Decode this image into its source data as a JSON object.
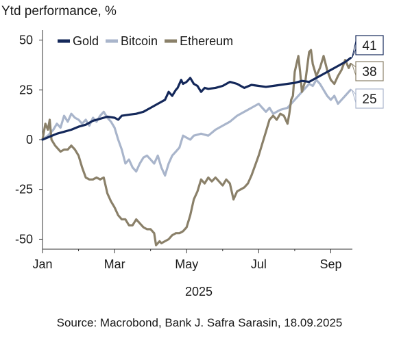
{
  "chart_data": {
    "type": "line",
    "title": "Ytd performance, %",
    "xlabel": "2025",
    "ylabel": "",
    "ylim": [
      -55,
      55
    ],
    "yticks": [
      50,
      25,
      0,
      -25,
      -50
    ],
    "xticks": [
      "Jan",
      "Mar",
      "May",
      "Jul",
      "Sep"
    ],
    "x_range": [
      0,
      8.6
    ],
    "x_unit": "months since 1 Jan 2025",
    "legend_position": "top",
    "grid": false,
    "series": [
      {
        "name": "Gold",
        "color": "#14285a",
        "end_label": "41",
        "points": [
          [
            0,
            0
          ],
          [
            0.2,
            1.5
          ],
          [
            0.4,
            3
          ],
          [
            0.6,
            4
          ],
          [
            0.8,
            5
          ],
          [
            1.0,
            6.5
          ],
          [
            1.2,
            7.5
          ],
          [
            1.4,
            9.5
          ],
          [
            1.6,
            10.5
          ],
          [
            1.8,
            11.5
          ],
          [
            2.0,
            11
          ],
          [
            2.1,
            10
          ],
          [
            2.2,
            12
          ],
          [
            2.4,
            12.5
          ],
          [
            2.6,
            13
          ],
          [
            2.8,
            14
          ],
          [
            3.0,
            16
          ],
          [
            3.2,
            18
          ],
          [
            3.4,
            20
          ],
          [
            3.5,
            24
          ],
          [
            3.6,
            22
          ],
          [
            3.7,
            25
          ],
          [
            3.75,
            26
          ],
          [
            3.85,
            30
          ],
          [
            3.9,
            28
          ],
          [
            4.0,
            29
          ],
          [
            4.1,
            31
          ],
          [
            4.2,
            28
          ],
          [
            4.3,
            27
          ],
          [
            4.4,
            24
          ],
          [
            4.5,
            26
          ],
          [
            4.6,
            25.5
          ],
          [
            4.8,
            26
          ],
          [
            5.0,
            27
          ],
          [
            5.2,
            29
          ],
          [
            5.4,
            28
          ],
          [
            5.6,
            26
          ],
          [
            5.8,
            27.5
          ],
          [
            6.0,
            27
          ],
          [
            6.2,
            26.5
          ],
          [
            6.4,
            27
          ],
          [
            6.6,
            27.5
          ],
          [
            6.8,
            28
          ],
          [
            7.0,
            28.5
          ],
          [
            7.2,
            29.5
          ],
          [
            7.4,
            29
          ],
          [
            7.6,
            31
          ],
          [
            7.8,
            33
          ],
          [
            8.0,
            35
          ],
          [
            8.2,
            37
          ],
          [
            8.4,
            39
          ],
          [
            8.55,
            41
          ]
        ]
      },
      {
        "name": "Bitcoin",
        "color": "#a9b5cb",
        "end_label": "25",
        "points": [
          [
            0,
            0
          ],
          [
            0.15,
            2
          ],
          [
            0.3,
            5
          ],
          [
            0.4,
            8
          ],
          [
            0.5,
            6
          ],
          [
            0.6,
            12
          ],
          [
            0.7,
            9
          ],
          [
            0.8,
            13
          ],
          [
            0.9,
            11
          ],
          [
            1.0,
            10
          ],
          [
            1.1,
            8
          ],
          [
            1.2,
            10
          ],
          [
            1.3,
            7
          ],
          [
            1.4,
            11
          ],
          [
            1.5,
            9
          ],
          [
            1.6,
            12
          ],
          [
            1.7,
            14
          ],
          [
            1.8,
            11
          ],
          [
            1.9,
            9
          ],
          [
            2.0,
            6
          ],
          [
            2.1,
            0
          ],
          [
            2.2,
            -5
          ],
          [
            2.3,
            -12
          ],
          [
            2.4,
            -10
          ],
          [
            2.5,
            -14
          ],
          [
            2.6,
            -16
          ],
          [
            2.7,
            -12
          ],
          [
            2.8,
            -9
          ],
          [
            2.9,
            -8
          ],
          [
            3.0,
            -10
          ],
          [
            3.1,
            -12
          ],
          [
            3.2,
            -8
          ],
          [
            3.3,
            -14
          ],
          [
            3.4,
            -18
          ],
          [
            3.5,
            -12
          ],
          [
            3.6,
            -8
          ],
          [
            3.7,
            -6
          ],
          [
            3.8,
            -4
          ],
          [
            3.9,
            2
          ],
          [
            4.0,
            1
          ],
          [
            4.1,
            0
          ],
          [
            4.2,
            2
          ],
          [
            4.4,
            3
          ],
          [
            4.6,
            2
          ],
          [
            4.8,
            5
          ],
          [
            5.0,
            7
          ],
          [
            5.2,
            9
          ],
          [
            5.4,
            12
          ],
          [
            5.6,
            14
          ],
          [
            5.8,
            16
          ],
          [
            6.0,
            18
          ],
          [
            6.1,
            16
          ],
          [
            6.2,
            14
          ],
          [
            6.3,
            16
          ],
          [
            6.4,
            13
          ],
          [
            6.5,
            14
          ],
          [
            6.6,
            15
          ],
          [
            6.8,
            16
          ],
          [
            7.0,
            20
          ],
          [
            7.2,
            24
          ],
          [
            7.3,
            26
          ],
          [
            7.4,
            28
          ],
          [
            7.5,
            27
          ],
          [
            7.6,
            30
          ],
          [
            7.7,
            28
          ],
          [
            7.8,
            25
          ],
          [
            7.9,
            22
          ],
          [
            8.0,
            20
          ],
          [
            8.1,
            22
          ],
          [
            8.2,
            18
          ],
          [
            8.3,
            20
          ],
          [
            8.4,
            22
          ],
          [
            8.5,
            24
          ],
          [
            8.55,
            25
          ]
        ]
      },
      {
        "name": "Ethereum",
        "color": "#8a8069",
        "end_label": "38",
        "points": [
          [
            0,
            0
          ],
          [
            0.08,
            8
          ],
          [
            0.15,
            5
          ],
          [
            0.2,
            10
          ],
          [
            0.25,
            0
          ],
          [
            0.35,
            -3
          ],
          [
            0.5,
            -6
          ],
          [
            0.6,
            -5
          ],
          [
            0.7,
            -5
          ],
          [
            0.8,
            -3
          ],
          [
            0.9,
            -5
          ],
          [
            1.0,
            -8
          ],
          [
            1.1,
            -14
          ],
          [
            1.2,
            -19
          ],
          [
            1.3,
            -20
          ],
          [
            1.4,
            -20
          ],
          [
            1.5,
            -19
          ],
          [
            1.6,
            -20
          ],
          [
            1.7,
            -19
          ],
          [
            1.8,
            -27
          ],
          [
            1.9,
            -31
          ],
          [
            2.0,
            -34
          ],
          [
            2.1,
            -38
          ],
          [
            2.2,
            -40
          ],
          [
            2.3,
            -40
          ],
          [
            2.4,
            -43
          ],
          [
            2.5,
            -43
          ],
          [
            2.6,
            -40
          ],
          [
            2.7,
            -42
          ],
          [
            2.8,
            -44
          ],
          [
            2.9,
            -45
          ],
          [
            3.0,
            -45
          ],
          [
            3.1,
            -47
          ],
          [
            3.15,
            -53
          ],
          [
            3.25,
            -51
          ],
          [
            3.3,
            -52
          ],
          [
            3.4,
            -51
          ],
          [
            3.5,
            -50
          ],
          [
            3.6,
            -48
          ],
          [
            3.7,
            -47
          ],
          [
            3.8,
            -47
          ],
          [
            3.9,
            -46
          ],
          [
            4.0,
            -44
          ],
          [
            4.1,
            -38
          ],
          [
            4.2,
            -30
          ],
          [
            4.3,
            -26
          ],
          [
            4.4,
            -20
          ],
          [
            4.5,
            -22
          ],
          [
            4.6,
            -19
          ],
          [
            4.7,
            -21
          ],
          [
            4.8,
            -19
          ],
          [
            4.9,
            -21
          ],
          [
            5.0,
            -23
          ],
          [
            5.1,
            -20
          ],
          [
            5.2,
            -22
          ],
          [
            5.3,
            -30
          ],
          [
            5.4,
            -26
          ],
          [
            5.5,
            -25
          ],
          [
            5.6,
            -24
          ],
          [
            5.7,
            -22
          ],
          [
            5.8,
            -18
          ],
          [
            5.9,
            -13
          ],
          [
            6.0,
            -8
          ],
          [
            6.1,
            -2
          ],
          [
            6.2,
            4
          ],
          [
            6.3,
            10
          ],
          [
            6.4,
            12
          ],
          [
            6.5,
            10
          ],
          [
            6.6,
            13
          ],
          [
            6.7,
            12
          ],
          [
            6.8,
            8
          ],
          [
            6.85,
            13
          ],
          [
            6.9,
            20
          ],
          [
            6.95,
            22
          ],
          [
            7.0,
            34
          ],
          [
            7.05,
            38
          ],
          [
            7.1,
            42
          ],
          [
            7.15,
            34
          ],
          [
            7.2,
            24
          ],
          [
            7.3,
            30
          ],
          [
            7.4,
            44
          ],
          [
            7.45,
            45
          ],
          [
            7.5,
            38
          ],
          [
            7.55,
            35
          ],
          [
            7.6,
            32
          ],
          [
            7.7,
            36
          ],
          [
            7.8,
            42
          ],
          [
            7.9,
            35
          ],
          [
            8.0,
            30
          ],
          [
            8.1,
            28
          ],
          [
            8.2,
            32
          ],
          [
            8.3,
            35
          ],
          [
            8.4,
            40
          ],
          [
            8.5,
            36
          ],
          [
            8.55,
            38
          ]
        ]
      }
    ]
  },
  "source": "Source: Macrobond, Bank J. Safra Sarasin, 18.09.2025"
}
